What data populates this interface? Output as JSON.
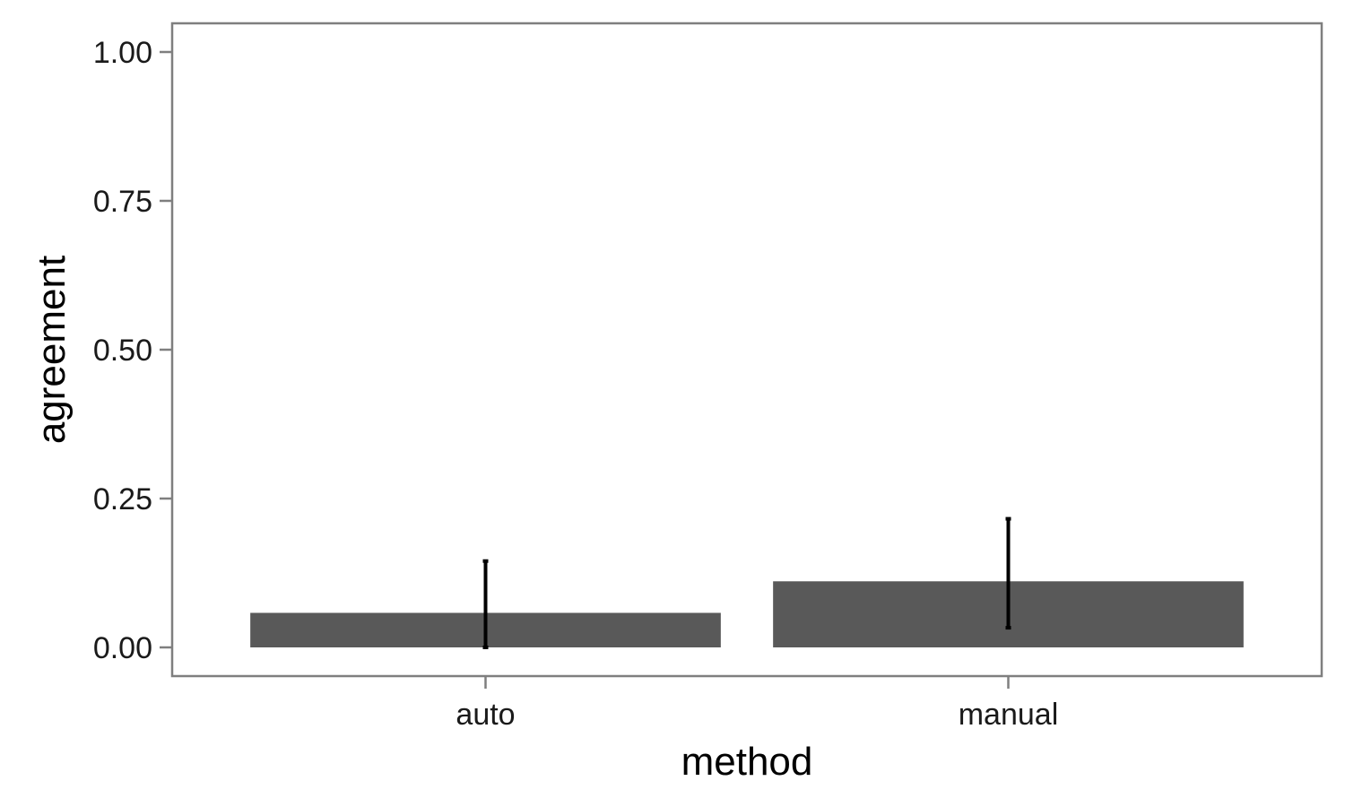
{
  "chart_data": {
    "type": "bar",
    "categories": [
      "auto",
      "manual"
    ],
    "values": [
      0.058,
      0.111
    ],
    "error_bars": [
      {
        "low": 0.0,
        "high": 0.145
      },
      {
        "low": 0.033,
        "high": 0.216
      }
    ],
    "xlabel": "method",
    "ylabel": "agreement",
    "ylim": [
      0,
      1
    ],
    "yticks": [
      0,
      0.25,
      0.5,
      0.75,
      1.0
    ],
    "ytick_labels": [
      "0.00",
      "0.25",
      "0.50",
      "0.75",
      "1.00"
    ],
    "grid": false,
    "legend": "none",
    "colors": {
      "bar": "#595959",
      "error_bar": "#000000",
      "axis": "#7f7f7f",
      "background": "#ffffff"
    }
  }
}
